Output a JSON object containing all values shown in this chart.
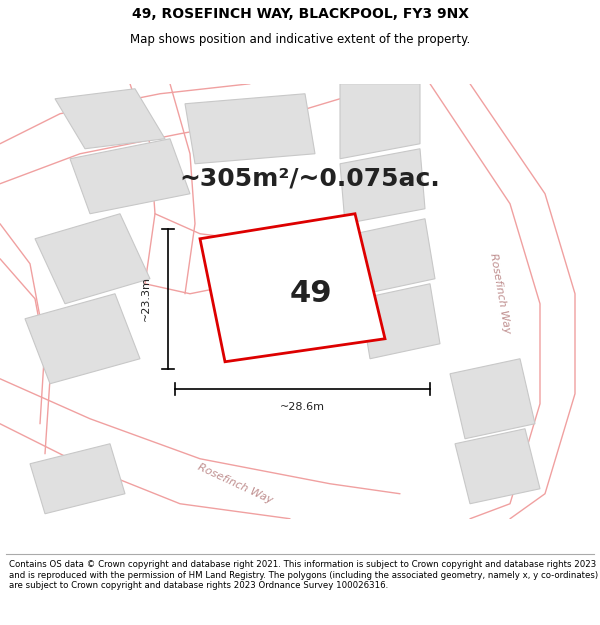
{
  "title": "49, ROSEFINCH WAY, BLACKPOOL, FY3 9NX",
  "subtitle": "Map shows position and indicative extent of the property.",
  "area_text": "~305m²/~0.075ac.",
  "plot_number": "49",
  "dim_width": "~28.6m",
  "dim_height": "~23.3m",
  "road_label_right": "Rosefinch Way",
  "road_label_bottom": "Rosefinch Way",
  "footer": "Contains OS data © Crown copyright and database right 2021. This information is subject to Crown copyright and database rights 2023 and is reproduced with the permission of HM Land Registry. The polygons (including the associated geometry, namely x, y co-ordinates) are subject to Crown copyright and database rights 2023 Ordnance Survey 100026316.",
  "bg_color": "#ffffff",
  "plot_fill": "#ffffff",
  "plot_edge": "#dd0000",
  "road_color": "#f0a0a0",
  "neighbor_fill": "#e0e0e0",
  "neighbor_edge": "#c8c8c8",
  "title_fontsize": 10,
  "subtitle_fontsize": 8.5,
  "area_fontsize": 18,
  "plot_num_fontsize": 22,
  "dim_fontsize": 8,
  "road_fontsize": 8,
  "footer_fontsize": 6.2
}
